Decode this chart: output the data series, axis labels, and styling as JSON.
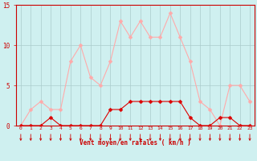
{
  "hours": [
    0,
    1,
    2,
    3,
    4,
    5,
    6,
    7,
    8,
    9,
    10,
    11,
    12,
    13,
    14,
    15,
    16,
    17,
    18,
    19,
    20,
    21,
    22,
    23
  ],
  "wind_avg": [
    0,
    0,
    0,
    1,
    0,
    0,
    0,
    0,
    0,
    2,
    2,
    3,
    3,
    3,
    3,
    3,
    3,
    1,
    0,
    0,
    1,
    1,
    0,
    0
  ],
  "wind_gust": [
    0,
    2,
    3,
    2,
    2,
    8,
    10,
    6,
    5,
    8,
    13,
    11,
    13,
    11,
    11,
    14,
    11,
    8,
    3,
    2,
    0,
    5,
    5,
    3
  ],
  "avg_color": "#dd0000",
  "gust_color": "#ffaaaa",
  "bg_color": "#cff0f0",
  "grid_color": "#aacccc",
  "axis_color": "#cc0000",
  "xlabel": "Vent moyen/en rafales ( km/h )",
  "ylim": [
    0,
    15
  ],
  "yticks": [
    0,
    5,
    10,
    15
  ],
  "arrow_color": "#cc0000"
}
